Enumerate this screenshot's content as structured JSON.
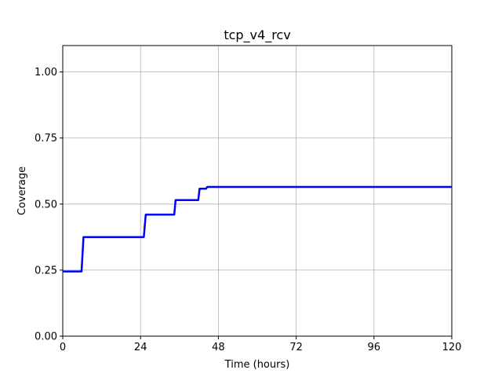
{
  "chart_data": {
    "type": "line",
    "title": "tcp_v4_rcv",
    "xlabel": "Time (hours)",
    "ylabel": "Coverage",
    "xlim": [
      0,
      120
    ],
    "ylim": [
      0,
      1.1
    ],
    "xticks": [
      0,
      24,
      48,
      72,
      96,
      120
    ],
    "xtick_labels": [
      "0",
      "24",
      "48",
      "72",
      "96",
      "120"
    ],
    "yticks": [
      0,
      0.25,
      0.5,
      0.75,
      1.0
    ],
    "ytick_labels": [
      "0.00",
      "0.25",
      "0.50",
      "0.75",
      "1.00"
    ],
    "grid": true,
    "series": [
      {
        "color": "#0000ff",
        "x": [
          0,
          5.8,
          6.4,
          25.0,
          25.6,
          34.4,
          34.8,
          41.8,
          42.2,
          44.2,
          44.6,
          120
        ],
        "y": [
          0.245,
          0.245,
          0.375,
          0.375,
          0.46,
          0.46,
          0.515,
          0.515,
          0.558,
          0.558,
          0.565,
          0.565
        ]
      }
    ]
  }
}
